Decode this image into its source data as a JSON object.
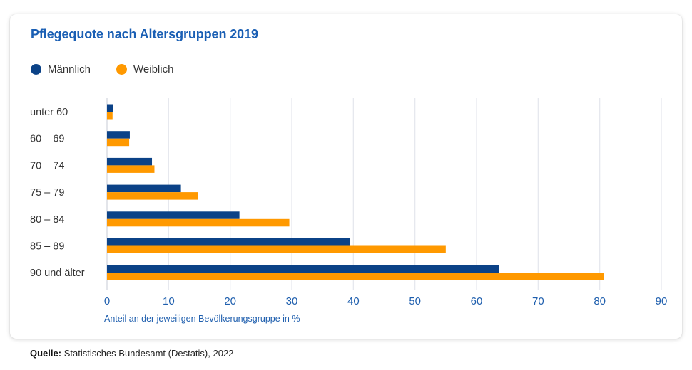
{
  "chart_data": {
    "type": "bar",
    "orientation": "horizontal",
    "title": "Pflegequote nach Altersgruppen 2019",
    "categories": [
      "unter 60",
      "60 – 69",
      "70 – 74",
      "75 – 79",
      "80 – 84",
      "85 – 89",
      "90 und älter"
    ],
    "series": [
      {
        "name": "Männlich",
        "color": "#0b4287",
        "values": [
          1.0,
          3.7,
          7.3,
          12.0,
          21.5,
          39.4,
          63.7
        ]
      },
      {
        "name": "Weiblich",
        "color": "#ff9900",
        "values": [
          0.9,
          3.6,
          7.7,
          14.8,
          29.6,
          55.0,
          80.7
        ]
      }
    ],
    "xlabel": "Anteil an der jeweiligen Bevölkerungsgruppe in %",
    "ylabel": "",
    "xlim": [
      0,
      90
    ],
    "xticks": [
      0,
      10,
      20,
      30,
      40,
      50,
      60,
      70,
      80,
      90
    ],
    "grid": true,
    "legend_position": "top-left"
  },
  "source": {
    "label": "Quelle:",
    "text": " Statistisches Bundesamt (Destatis), 2022"
  }
}
